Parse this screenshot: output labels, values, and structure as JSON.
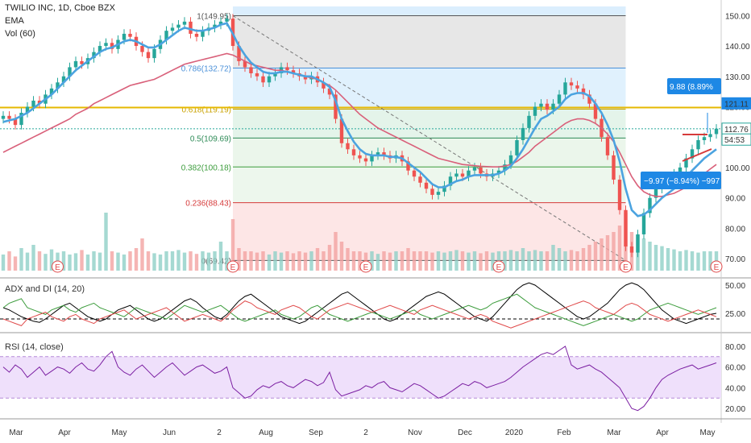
{
  "header": {
    "symbol_title": "TWILIO INC, 1D, Cboe BZX",
    "ema_label": "EMA",
    "vol_label": "Vol (60)"
  },
  "colors": {
    "up_candle": "#26a69a",
    "down_candle": "#ef5350",
    "ema_fast": "#4ba3e0",
    "ema_slow": "#d9607a",
    "fib_yellow": "#e6b800",
    "adx": "#000000",
    "di_plus": "#3c9c3c",
    "di_minus": "#e04a4a",
    "rsi": "#7b1fa2",
    "rsi_band": "#efe0fb"
  },
  "chart_data": [
    {
      "type": "candlestick",
      "title": "TWILIO INC, 1D, Cboe BZX",
      "ylim": [
        65,
        153
      ],
      "y_ticks": [
        "150.00",
        "140.00",
        "130.00",
        "120.00",
        "110.00",
        "100.00",
        "90.00",
        "80.00",
        "70.00"
      ],
      "x_ticks": [
        "Mar",
        "Apr",
        "May",
        "Jun",
        "2",
        "Aug",
        "Sep",
        "2",
        "Nov",
        "Dec",
        "2020",
        "Feb",
        "Mar",
        "Apr",
        "May"
      ],
      "fib_levels": [
        {
          "label": "1(149.95)",
          "value": 149.95,
          "color": "#555555"
        },
        {
          "label": "0.786(132.72)",
          "value": 132.72,
          "color": "#4a90d9"
        },
        {
          "label": "0.618(119.19)",
          "value": 119.19,
          "color": "#c9a200"
        },
        {
          "label": "0.5(109.69)",
          "value": 109.69,
          "color": "#2e8b57"
        },
        {
          "label": "0.382(100.18)",
          "value": 100.18,
          "color": "#3c9c3c"
        },
        {
          "label": "0.236(88.43)",
          "value": 88.43,
          "color": "#d63a3a"
        },
        {
          "label": "0(69.42)",
          "value": 69.42,
          "color": "#555555"
        }
      ],
      "price_labels": [
        {
          "text": "121.11",
          "value": 121.11,
          "bg": "#1e88e5"
        },
        {
          "text": "112.76",
          "value": 112.76,
          "bg": "#ffffff"
        },
        {
          "text": "54:53",
          "value": 109.2,
          "bg": "#ffffff"
        }
      ],
      "measure_up": "9.88 (8.89%",
      "measure_down": "−9.97 (−8.94%) −997",
      "earnings_marker": "E",
      "close_series": [
        117,
        116,
        114,
        118,
        120,
        122,
        121,
        124,
        126,
        128,
        130,
        133,
        135,
        134,
        136,
        138,
        140,
        141,
        139,
        142,
        144,
        143,
        140,
        138,
        136,
        139,
        142,
        145,
        146,
        147,
        148,
        144,
        143,
        145,
        146,
        147,
        148,
        149,
        140,
        135,
        133,
        131,
        130,
        128,
        130,
        131,
        133,
        132,
        131,
        130,
        129,
        130,
        128,
        126,
        124,
        116,
        108,
        106,
        104,
        103,
        102,
        104,
        105,
        104,
        103,
        104,
        102,
        99,
        97,
        95,
        93,
        91,
        92,
        94,
        97,
        98,
        97,
        99,
        100,
        98,
        97,
        98,
        99,
        101,
        104,
        109,
        113,
        117,
        120,
        121,
        119,
        121,
        124,
        128,
        127,
        126,
        124,
        121,
        116,
        110,
        104,
        96,
        86,
        74,
        72,
        78,
        85,
        90,
        93,
        95,
        96,
        98,
        100,
        103,
        106,
        109,
        110,
        111,
        112.76
      ],
      "ema_fast": [
        115,
        115.5,
        116,
        117,
        118,
        119.5,
        121,
        122.5,
        124,
        126,
        128,
        130,
        132,
        133.5,
        135,
        136.5,
        138,
        139,
        139.5,
        140.5,
        141.5,
        142,
        141.5,
        140.5,
        139.5,
        139.5,
        140.5,
        142,
        143.5,
        145,
        146,
        145.5,
        145,
        145,
        145.5,
        146,
        147,
        147.5,
        144,
        140,
        137,
        134.5,
        133,
        131.5,
        131,
        131,
        131.5,
        131.5,
        131,
        130.5,
        130,
        130,
        129,
        128,
        126.5,
        122,
        116,
        112,
        108.5,
        106,
        104.5,
        104,
        104,
        104,
        103.5,
        103.5,
        103,
        101.5,
        100,
        98.5,
        96.5,
        94.5,
        93.5,
        93.5,
        94.5,
        95.5,
        96,
        97,
        97.5,
        97.5,
        97.5,
        97.5,
        98,
        99,
        100.5,
        103,
        106,
        109.5,
        113,
        116,
        117,
        118.5,
        120,
        122.5,
        124,
        124.5,
        124.5,
        123.5,
        121,
        118,
        114,
        109,
        102,
        93,
        86,
        84,
        84.5,
        86,
        88,
        90,
        91.5,
        93,
        95,
        97,
        99,
        101,
        103,
        104.5,
        106
      ],
      "ema_slow": [
        105,
        106,
        107,
        108,
        109,
        110,
        111,
        112,
        113,
        114,
        115,
        116,
        117.5,
        118.5,
        119.5,
        121,
        122,
        123,
        124,
        125,
        126,
        127,
        127.5,
        128,
        128.5,
        129,
        130,
        131,
        132,
        133,
        134,
        134.5,
        135,
        135.5,
        136,
        136.5,
        137,
        137.5,
        137,
        136,
        135,
        134,
        133.5,
        133,
        132.5,
        132,
        132,
        131.5,
        131,
        130.5,
        130,
        129.5,
        129,
        128,
        127,
        125.5,
        123.5,
        121.5,
        119.5,
        117.5,
        116,
        114.5,
        113,
        112,
        111,
        110,
        109,
        108,
        107,
        106,
        105,
        104,
        103,
        102.5,
        102,
        101.5,
        101,
        100.8,
        100.6,
        100.4,
        100.3,
        100.2,
        100.2,
        100.5,
        101,
        102,
        103.5,
        105,
        107,
        108.5,
        110,
        111.5,
        113,
        114.5,
        115.5,
        116,
        116,
        115.5,
        114.5,
        113,
        111,
        108.5,
        105,
        101,
        97,
        94,
        92,
        91,
        90.5,
        90.5,
        91,
        91.5,
        92.5,
        93.5,
        95,
        96.5,
        98,
        99.5,
        101
      ],
      "volume_relative": [
        0.25,
        0.3,
        0.22,
        0.35,
        0.28,
        0.4,
        0.3,
        0.26,
        0.33,
        0.28,
        0.3,
        0.25,
        0.27,
        0.32,
        0.25,
        0.3,
        0.28,
        0.9,
        0.3,
        0.28,
        0.25,
        0.3,
        0.35,
        0.5,
        0.3,
        0.27,
        0.25,
        0.3,
        0.3,
        0.32,
        0.28,
        0.3,
        0.26,
        0.3,
        0.28,
        0.3,
        0.45,
        0.3,
        0.8,
        0.35,
        0.3,
        0.3,
        0.28,
        0.3,
        0.25,
        0.3,
        0.28,
        0.3,
        0.27,
        0.3,
        0.28,
        0.3,
        0.35,
        0.3,
        0.4,
        0.6,
        0.45,
        0.35,
        0.3,
        0.3,
        0.28,
        0.3,
        0.26,
        0.3,
        0.28,
        0.3,
        0.3,
        0.35,
        0.3,
        0.3,
        0.3,
        0.28,
        0.3,
        0.28,
        0.3,
        0.32,
        0.3,
        0.28,
        0.3,
        0.27,
        0.3,
        0.28,
        0.3,
        0.3,
        0.32,
        0.3,
        0.35,
        0.3,
        0.32,
        0.3,
        0.3,
        0.4,
        0.35,
        0.3,
        0.32,
        0.3,
        0.35,
        0.4,
        0.45,
        0.5,
        0.55,
        0.6,
        0.7,
        0.9,
        0.6,
        0.55,
        0.5,
        0.45,
        0.4,
        0.38,
        0.35,
        0.33,
        0.3,
        0.32,
        0.3,
        0.28,
        0.3,
        0.3,
        0.3
      ]
    },
    {
      "type": "line",
      "title": "ADX and DI (14, 20)",
      "ylim": [
        10,
        55
      ],
      "y_ticks": [
        "50.00",
        "25.00"
      ],
      "series": [
        {
          "name": "ADX",
          "values": [
            30,
            28,
            25,
            22,
            20,
            18,
            17,
            20,
            24,
            28,
            32,
            34,
            30,
            26,
            22,
            20,
            18,
            20,
            24,
            28,
            30,
            32,
            28,
            24,
            20,
            18,
            20,
            24,
            28,
            32,
            36,
            38,
            35,
            30,
            26,
            22,
            20,
            24,
            30,
            36,
            40,
            42,
            38,
            34,
            30,
            26,
            22,
            20,
            18,
            16,
            18,
            22,
            26,
            30,
            34,
            38,
            42,
            44,
            40,
            36,
            32,
            28,
            24,
            20,
            18,
            20,
            24,
            28,
            32,
            36,
            40,
            42,
            44,
            42,
            38,
            34,
            30,
            26,
            22,
            20,
            18,
            22,
            28,
            34,
            40,
            46,
            50,
            52,
            50,
            46,
            42,
            38,
            34,
            30,
            26,
            22,
            20,
            22,
            26,
            30,
            34,
            40,
            46,
            50,
            52,
            50,
            46,
            40,
            34,
            28,
            24,
            20,
            18,
            16,
            18,
            20,
            22,
            24,
            25
          ]
        },
        {
          "name": "+DI",
          "values": [
            30,
            34,
            36,
            38,
            30,
            28,
            26,
            24,
            28,
            30,
            32,
            28,
            26,
            30,
            32,
            34,
            30,
            28,
            26,
            24,
            22,
            26,
            30,
            28,
            26,
            24,
            22,
            20,
            24,
            28,
            32,
            30,
            28,
            26,
            28,
            30,
            32,
            28,
            24,
            20,
            18,
            20,
            22,
            24,
            26,
            28,
            24,
            22,
            20,
            22,
            26,
            30,
            32,
            28,
            24,
            22,
            20,
            18,
            20,
            22,
            24,
            26,
            24,
            22,
            20,
            22,
            24,
            26,
            28,
            24,
            22,
            20,
            22,
            24,
            26,
            28,
            30,
            32,
            30,
            28,
            30,
            34,
            36,
            38,
            40,
            42,
            38,
            34,
            30,
            28,
            26,
            24,
            22,
            20,
            18,
            16,
            14,
            16,
            18,
            20,
            22,
            24,
            22,
            20,
            18,
            20,
            24,
            28,
            30,
            32,
            34,
            32,
            30,
            28,
            26,
            24,
            26,
            28,
            30
          ]
        },
        {
          "name": "-DI",
          "values": [
            20,
            18,
            16,
            14,
            20,
            22,
            24,
            26,
            22,
            20,
            18,
            22,
            24,
            20,
            18,
            16,
            20,
            22,
            24,
            26,
            28,
            24,
            20,
            22,
            24,
            26,
            28,
            30,
            26,
            22,
            18,
            20,
            22,
            24,
            22,
            20,
            18,
            22,
            28,
            32,
            36,
            34,
            30,
            28,
            26,
            24,
            28,
            30,
            32,
            30,
            26,
            22,
            20,
            24,
            28,
            30,
            32,
            34,
            32,
            30,
            28,
            26,
            28,
            30,
            32,
            30,
            28,
            26,
            24,
            28,
            30,
            32,
            30,
            28,
            26,
            24,
            22,
            20,
            22,
            24,
            22,
            18,
            16,
            14,
            12,
            14,
            16,
            18,
            20,
            22,
            24,
            26,
            28,
            30,
            32,
            34,
            36,
            34,
            30,
            28,
            26,
            24,
            28,
            32,
            34,
            32,
            28,
            24,
            22,
            20,
            18,
            20,
            22,
            24,
            26,
            28,
            26,
            24,
            22
          ]
        }
      ]
    },
    {
      "type": "line",
      "title": "RSI (14, close)",
      "ylim": [
        10,
        90
      ],
      "y_ticks": [
        "80.00",
        "60.00",
        "40.00",
        "20.00"
      ],
      "band": [
        30,
        70
      ],
      "series": [
        {
          "name": "RSI",
          "values": [
            60,
            55,
            62,
            58,
            50,
            55,
            60,
            52,
            56,
            60,
            58,
            54,
            60,
            64,
            58,
            56,
            62,
            70,
            75,
            60,
            55,
            52,
            58,
            62,
            56,
            50,
            55,
            60,
            64,
            58,
            52,
            56,
            60,
            62,
            58,
            54,
            56,
            60,
            40,
            35,
            30,
            32,
            38,
            42,
            40,
            44,
            46,
            42,
            40,
            44,
            48,
            46,
            42,
            45,
            55,
            38,
            32,
            34,
            36,
            38,
            42,
            40,
            44,
            46,
            40,
            38,
            36,
            40,
            44,
            42,
            38,
            34,
            30,
            32,
            36,
            40,
            44,
            42,
            46,
            44,
            40,
            42,
            44,
            46,
            50,
            55,
            60,
            64,
            68,
            72,
            74,
            72,
            76,
            80,
            62,
            58,
            60,
            62,
            58,
            55,
            50,
            45,
            40,
            30,
            20,
            18,
            22,
            30,
            40,
            48,
            52,
            55,
            58,
            60,
            62,
            58,
            60,
            62,
            64
          ]
        }
      ]
    }
  ]
}
